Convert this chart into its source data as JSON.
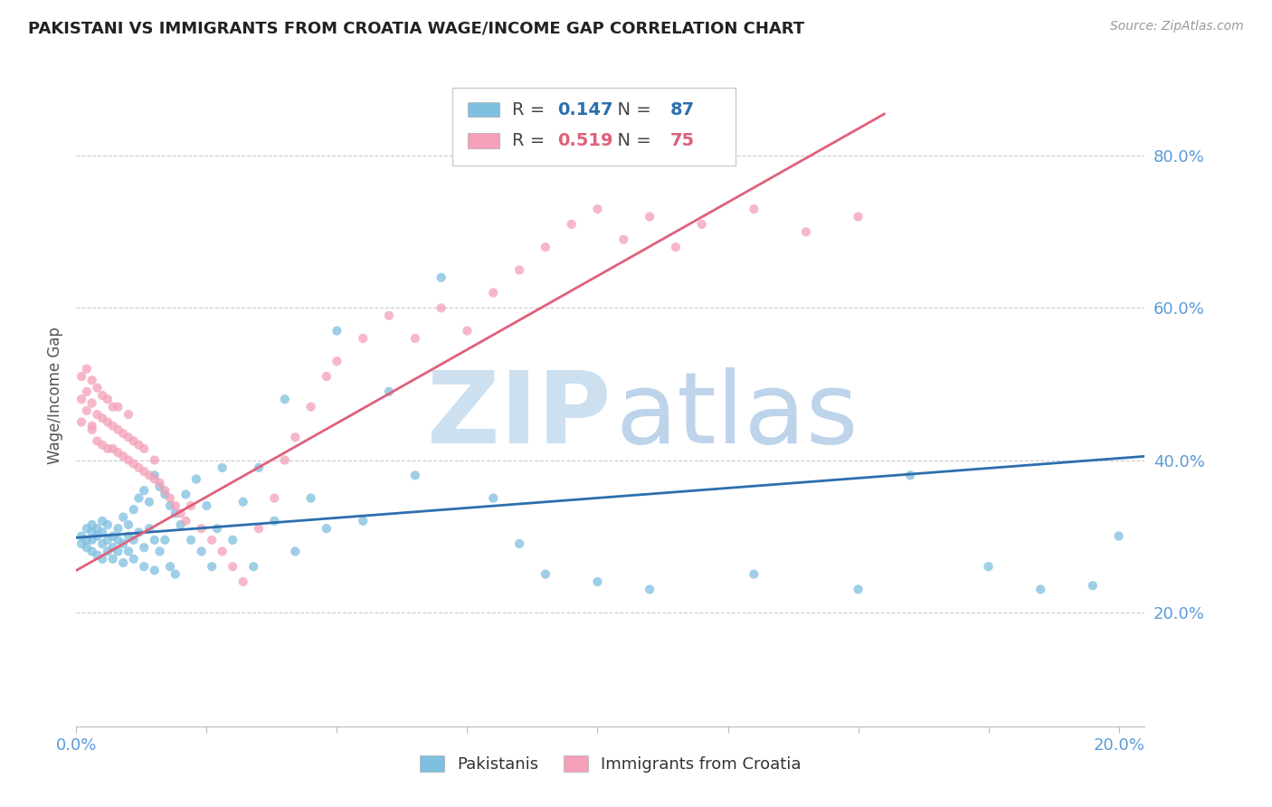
{
  "title": "PAKISTANI VS IMMIGRANTS FROM CROATIA WAGE/INCOME GAP CORRELATION CHART",
  "source": "Source: ZipAtlas.com",
  "ylabel": "Wage/Income Gap",
  "blue_label": "Pakistanis",
  "pink_label": "Immigrants from Croatia",
  "blue_R": 0.147,
  "blue_N": 87,
  "pink_R": 0.519,
  "pink_N": 75,
  "blue_color": "#7fbfdf",
  "pink_color": "#f4a0b8",
  "blue_line_color": "#2c6fad",
  "pink_line_color": "#e0607a",
  "axis_color": "#5b9bd5",
  "title_color": "#222222",
  "background_color": "#ffffff",
  "grid_color": "#cccccc",
  "xlim": [
    0.0,
    0.205
  ],
  "ylim": [
    0.05,
    0.92
  ],
  "blue_scatter_x": [
    0.001,
    0.001,
    0.002,
    0.002,
    0.002,
    0.003,
    0.003,
    0.003,
    0.003,
    0.004,
    0.004,
    0.004,
    0.005,
    0.005,
    0.005,
    0.005,
    0.006,
    0.006,
    0.006,
    0.007,
    0.007,
    0.007,
    0.008,
    0.008,
    0.008,
    0.009,
    0.009,
    0.009,
    0.01,
    0.01,
    0.01,
    0.011,
    0.011,
    0.011,
    0.012,
    0.012,
    0.013,
    0.013,
    0.013,
    0.014,
    0.014,
    0.015,
    0.015,
    0.015,
    0.016,
    0.016,
    0.017,
    0.017,
    0.018,
    0.018,
    0.019,
    0.019,
    0.02,
    0.021,
    0.022,
    0.023,
    0.024,
    0.025,
    0.026,
    0.027,
    0.028,
    0.03,
    0.032,
    0.034,
    0.035,
    0.038,
    0.04,
    0.042,
    0.045,
    0.048,
    0.05,
    0.055,
    0.06,
    0.065,
    0.07,
    0.08,
    0.085,
    0.09,
    0.1,
    0.11,
    0.13,
    0.15,
    0.16,
    0.175,
    0.185,
    0.195,
    0.2
  ],
  "blue_scatter_y": [
    0.3,
    0.29,
    0.31,
    0.285,
    0.295,
    0.305,
    0.28,
    0.315,
    0.295,
    0.31,
    0.275,
    0.3,
    0.29,
    0.32,
    0.27,
    0.305,
    0.28,
    0.295,
    0.315,
    0.285,
    0.3,
    0.27,
    0.31,
    0.295,
    0.28,
    0.325,
    0.29,
    0.265,
    0.315,
    0.3,
    0.28,
    0.335,
    0.295,
    0.27,
    0.35,
    0.305,
    0.36,
    0.285,
    0.26,
    0.345,
    0.31,
    0.38,
    0.295,
    0.255,
    0.365,
    0.28,
    0.355,
    0.295,
    0.34,
    0.26,
    0.33,
    0.25,
    0.315,
    0.355,
    0.295,
    0.375,
    0.28,
    0.34,
    0.26,
    0.31,
    0.39,
    0.295,
    0.345,
    0.26,
    0.39,
    0.32,
    0.48,
    0.28,
    0.35,
    0.31,
    0.57,
    0.32,
    0.49,
    0.38,
    0.64,
    0.35,
    0.29,
    0.25,
    0.24,
    0.23,
    0.25,
    0.23,
    0.38,
    0.26,
    0.23,
    0.235,
    0.3
  ],
  "pink_scatter_x": [
    0.001,
    0.001,
    0.001,
    0.002,
    0.002,
    0.002,
    0.003,
    0.003,
    0.003,
    0.003,
    0.004,
    0.004,
    0.004,
    0.005,
    0.005,
    0.005,
    0.006,
    0.006,
    0.006,
    0.007,
    0.007,
    0.007,
    0.008,
    0.008,
    0.008,
    0.009,
    0.009,
    0.01,
    0.01,
    0.01,
    0.011,
    0.011,
    0.012,
    0.012,
    0.013,
    0.013,
    0.014,
    0.015,
    0.015,
    0.016,
    0.017,
    0.018,
    0.019,
    0.02,
    0.021,
    0.022,
    0.024,
    0.026,
    0.028,
    0.03,
    0.032,
    0.035,
    0.038,
    0.04,
    0.042,
    0.045,
    0.048,
    0.05,
    0.055,
    0.06,
    0.065,
    0.07,
    0.075,
    0.08,
    0.085,
    0.09,
    0.095,
    0.1,
    0.105,
    0.11,
    0.115,
    0.12,
    0.13,
    0.14,
    0.15
  ],
  "pink_scatter_y": [
    0.48,
    0.45,
    0.51,
    0.465,
    0.49,
    0.52,
    0.445,
    0.475,
    0.505,
    0.44,
    0.46,
    0.495,
    0.425,
    0.455,
    0.485,
    0.42,
    0.45,
    0.48,
    0.415,
    0.445,
    0.415,
    0.47,
    0.41,
    0.44,
    0.47,
    0.405,
    0.435,
    0.4,
    0.43,
    0.46,
    0.395,
    0.425,
    0.39,
    0.42,
    0.385,
    0.415,
    0.38,
    0.375,
    0.4,
    0.37,
    0.36,
    0.35,
    0.34,
    0.33,
    0.32,
    0.34,
    0.31,
    0.295,
    0.28,
    0.26,
    0.24,
    0.31,
    0.35,
    0.4,
    0.43,
    0.47,
    0.51,
    0.53,
    0.56,
    0.59,
    0.56,
    0.6,
    0.57,
    0.62,
    0.65,
    0.68,
    0.71,
    0.73,
    0.69,
    0.72,
    0.68,
    0.71,
    0.73,
    0.7,
    0.72
  ],
  "blue_trend_x": [
    0.0,
    0.205
  ],
  "blue_trend_y": [
    0.298,
    0.405
  ],
  "pink_trend_x": [
    0.0,
    0.155
  ],
  "pink_trend_y": [
    0.255,
    0.855
  ],
  "yticks": [
    0.2,
    0.4,
    0.6,
    0.8
  ],
  "ytick_labels": [
    "20.0%",
    "40.0%",
    "60.0%",
    "80.0%"
  ],
  "xticks": [
    0.0,
    0.025,
    0.05,
    0.075,
    0.1,
    0.125,
    0.15,
    0.175,
    0.2
  ],
  "xtick_labels": [
    "0.0%",
    "",
    "",
    "",
    "",
    "",
    "",
    "",
    "20.0%"
  ]
}
